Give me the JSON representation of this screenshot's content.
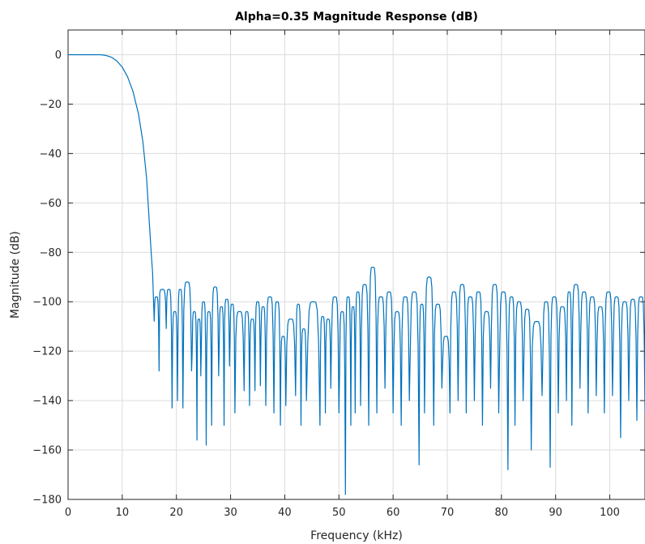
{
  "chart_data": {
    "type": "line",
    "title": "Alpha=0.35 Magnitude Response (dB)",
    "xlabel": "Frequency (kHz)",
    "ylabel": "Magnitude (dB)",
    "xlim": [
      0,
      106.5
    ],
    "ylim": [
      -180,
      10
    ],
    "xticks": [
      0,
      10,
      20,
      30,
      40,
      50,
      60,
      70,
      80,
      90,
      100
    ],
    "yticks": [
      0,
      -20,
      -40,
      -60,
      -80,
      -100,
      -120,
      -140,
      -160,
      -180
    ],
    "grid": true,
    "line_color": "#0072BD",
    "series": [
      {
        "passband": [
          [
            0,
            0
          ],
          [
            6.0,
            0
          ],
          [
            7.0,
            -0.3
          ],
          [
            8.0,
            -1
          ],
          [
            9.0,
            -2.5
          ],
          [
            10.0,
            -5
          ],
          [
            11.0,
            -9
          ],
          [
            12.0,
            -15
          ],
          [
            13.0,
            -24
          ],
          [
            13.8,
            -35
          ],
          [
            14.5,
            -50
          ],
          [
            15.0,
            -68
          ],
          [
            15.4,
            -82
          ],
          [
            15.6,
            -88
          ]
        ],
        "lobes": [
          [
            15.8,
            16.8,
            -98,
            -128
          ],
          [
            16.8,
            18.0,
            -95,
            -100
          ],
          [
            18.0,
            19.2,
            -95,
            -143
          ],
          [
            19.2,
            20.2,
            -104,
            -140
          ],
          [
            20.2,
            21.2,
            -95,
            -143
          ],
          [
            21.2,
            22.8,
            -92,
            -128
          ],
          [
            22.8,
            23.8,
            -104,
            -156
          ],
          [
            23.8,
            24.5,
            -107,
            -130
          ],
          [
            24.5,
            25.5,
            -100,
            -158
          ],
          [
            25.5,
            26.5,
            -104,
            -150
          ],
          [
            26.5,
            27.8,
            -94,
            -130
          ],
          [
            27.8,
            28.8,
            -102,
            -150
          ],
          [
            28.8,
            29.8,
            -99,
            -126
          ],
          [
            29.8,
            30.8,
            -101,
            -145
          ],
          [
            30.8,
            32.5,
            -104,
            -136
          ],
          [
            32.5,
            33.5,
            -104,
            -142
          ],
          [
            33.5,
            34.5,
            -107,
            -136
          ],
          [
            34.5,
            35.5,
            -100,
            -134
          ],
          [
            35.5,
            36.5,
            -102,
            -142
          ],
          [
            36.5,
            38.0,
            -98,
            -145
          ],
          [
            38.0,
            39.2,
            -100,
            -150
          ],
          [
            39.2,
            40.2,
            -114,
            -142
          ],
          [
            40.2,
            42.0,
            -107,
            -138
          ],
          [
            42.0,
            43.0,
            -101,
            -150
          ],
          [
            43.0,
            44.0,
            -111,
            -140
          ],
          [
            44.0,
            46.5,
            -100,
            -150
          ],
          [
            46.5,
            47.5,
            -106,
            -145
          ],
          [
            47.5,
            48.5,
            -107,
            -135
          ],
          [
            48.5,
            50.0,
            -98,
            -145
          ],
          [
            50.0,
            51.2,
            -104,
            -178
          ],
          [
            51.2,
            52.2,
            -98,
            -150
          ],
          [
            52.2,
            53.0,
            -102,
            -145
          ],
          [
            53.0,
            54.0,
            -96,
            -142
          ],
          [
            54.0,
            55.5,
            -93,
            -150
          ],
          [
            55.5,
            57.0,
            -86,
            -145
          ],
          [
            57.0,
            58.5,
            -98,
            -135
          ],
          [
            58.5,
            60.0,
            -96,
            -145
          ],
          [
            60.0,
            61.5,
            -104,
            -150
          ],
          [
            61.5,
            63.0,
            -98,
            -140
          ],
          [
            63.0,
            64.8,
            -96,
            -166
          ],
          [
            64.8,
            65.8,
            -101,
            -145
          ],
          [
            65.8,
            67.5,
            -90,
            -150
          ],
          [
            67.5,
            69.0,
            -101,
            -135
          ],
          [
            69.0,
            70.5,
            -114,
            -145
          ],
          [
            70.5,
            72.0,
            -96,
            -140
          ],
          [
            72.0,
            73.5,
            -93,
            -145
          ],
          [
            73.5,
            75.0,
            -98,
            -140
          ],
          [
            75.0,
            76.5,
            -96,
            -150
          ],
          [
            76.5,
            78.0,
            -104,
            -135
          ],
          [
            78.0,
            79.5,
            -93,
            -145
          ],
          [
            79.5,
            81.2,
            -96,
            -168
          ],
          [
            81.2,
            82.5,
            -98,
            -150
          ],
          [
            82.5,
            84.0,
            -100,
            -140
          ],
          [
            84.0,
            85.5,
            -103,
            -160
          ],
          [
            85.5,
            87.5,
            -108,
            -138
          ],
          [
            87.5,
            89.0,
            -100,
            -167
          ],
          [
            89.0,
            90.5,
            -98,
            -145
          ],
          [
            90.5,
            92.0,
            -102,
            -140
          ],
          [
            92.0,
            93.0,
            -96,
            -150
          ],
          [
            93.0,
            94.5,
            -93,
            -135
          ],
          [
            94.5,
            96.0,
            -96,
            -145
          ],
          [
            96.0,
            97.5,
            -98,
            -138
          ],
          [
            97.5,
            99.0,
            -102,
            -145
          ],
          [
            99.0,
            100.5,
            -96,
            -138
          ],
          [
            100.5,
            102.0,
            -98,
            -155
          ],
          [
            102.0,
            103.5,
            -100,
            -140
          ],
          [
            103.5,
            105.0,
            -99,
            -148
          ],
          [
            105.0,
            106.5,
            -98,
            -145
          ]
        ]
      }
    ]
  }
}
